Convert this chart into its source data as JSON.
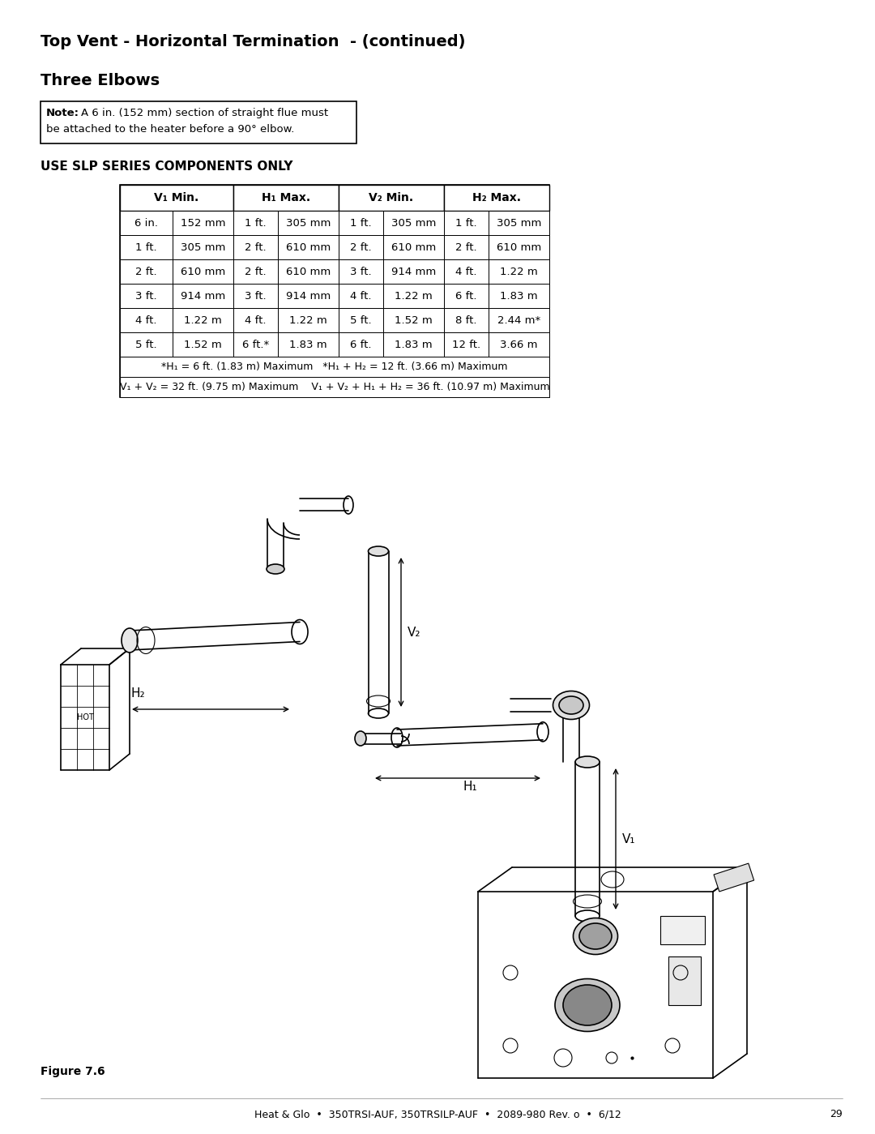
{
  "title": "Top Vent - Horizontal Termination  - (continued)",
  "subtitle": "Three Elbows",
  "note_text": "Note: A 6 in. (152 mm) section of straight flue must\nbe attached to the heater before a 90° elbow.",
  "use_text": "USE SLP SERIES COMPONENTS ONLY",
  "table_headers": [
    "V₁ Min.",
    "",
    "H₁ Max.",
    "",
    "V₂ Min.",
    "",
    "H₂ Max.",
    ""
  ],
  "table_col_headers": [
    "V₁ Min.",
    "H₁ Max.",
    "V₂ Min.",
    "H₂ Max."
  ],
  "table_rows": [
    [
      "6 in.",
      "152 mm",
      "1 ft.",
      "305 mm",
      "1 ft.",
      "305 mm",
      "1 ft.",
      "305 mm"
    ],
    [
      "1 ft.",
      "305 mm",
      "2 ft.",
      "610 mm",
      "2 ft.",
      "610 mm",
      "2 ft.",
      "610 mm"
    ],
    [
      "2 ft.",
      "610 mm",
      "2 ft.",
      "610 mm",
      "3 ft.",
      "914 mm",
      "4 ft.",
      "1.22 m"
    ],
    [
      "3 ft.",
      "914 mm",
      "3 ft.",
      "914 mm",
      "4 ft.",
      "1.22 m",
      "6 ft.",
      "1.83 m"
    ],
    [
      "4 ft.",
      "1.22 m",
      "4 ft.",
      "1.22 m",
      "5 ft.",
      "1.52 m",
      "8 ft.",
      "2.44 m*"
    ],
    [
      "5 ft.",
      "1.52 m",
      "6 ft.*",
      "1.83 m",
      "6 ft.",
      "1.83 m",
      "12 ft.",
      "3.66 m"
    ]
  ],
  "table_footnote1": "*H₁ = 6 ft. (1.83 m) Maximum   *H₁ + H₂ = 12 ft. (3.66 m) Maximum",
  "table_footnote2": "V₁ + V₂ = 32 ft. (9.75 m) Maximum    V₁ + V₂ + H₁ + H₂ = 36 ft. (10.97 m) Maximum",
  "figure_label": "Figure 7.6",
  "footer": "Heat & Glo  •  350TRSI-AUF, 350TRSILP-AUF  •  2089-980 Rev. o  •  6/12",
  "page_num": "29",
  "bg_color": "#ffffff",
  "text_color": "#000000",
  "table_border_color": "#000000"
}
